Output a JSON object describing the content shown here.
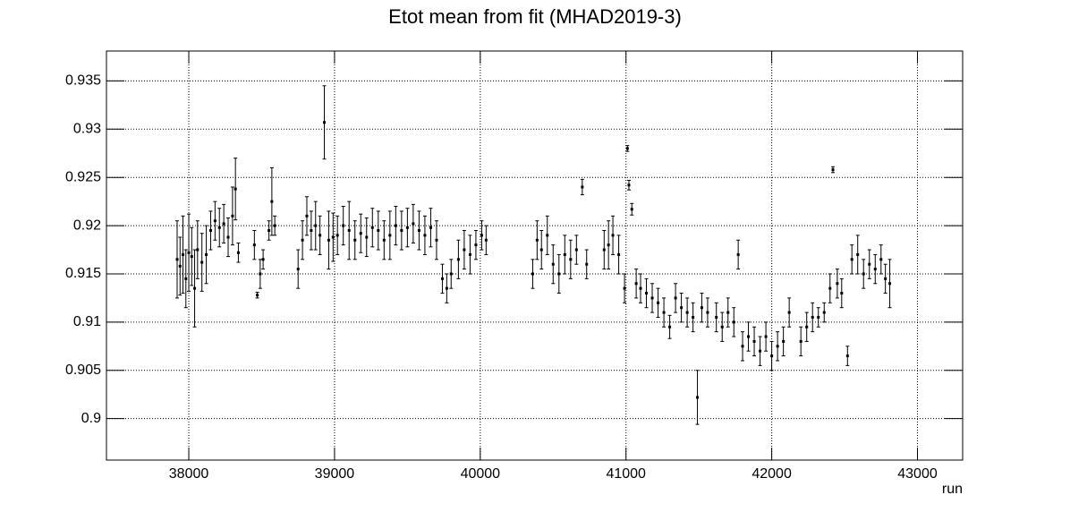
{
  "chart_data": {
    "type": "errorbar",
    "title": "Etot mean from fit (MHAD2019-3)",
    "x_label": "run",
    "color": "#000000",
    "grid": true,
    "xlim": [
      37435,
      43310
    ],
    "ylim": [
      0.8957,
      0.9381
    ],
    "xticks": [
      38000,
      39000,
      40000,
      41000,
      42000,
      43000
    ],
    "yticks": [
      0.9,
      0.905,
      0.91,
      0.915,
      0.92,
      0.925,
      0.93,
      0.935
    ],
    "x": [
      37920,
      37940,
      37960,
      37980,
      38000,
      38020,
      38040,
      38060,
      38090,
      38120,
      38150,
      38180,
      38210,
      38240,
      38270,
      38300,
      38320,
      38340,
      38450,
      38470,
      38490,
      38510,
      38550,
      38570,
      38590,
      38750,
      38780,
      38810,
      38840,
      38870,
      38900,
      38930,
      38960,
      38990,
      39020,
      39060,
      39100,
      39140,
      39180,
      39220,
      39260,
      39300,
      39340,
      39380,
      39420,
      39460,
      39500,
      39540,
      39580,
      39620,
      39660,
      39700,
      39740,
      39770,
      39800,
      39850,
      39890,
      39930,
      39970,
      40010,
      40040,
      40360,
      40390,
      40420,
      40460,
      40500,
      40540,
      40580,
      40620,
      40660,
      40700,
      40730,
      40850,
      40880,
      40910,
      40950,
      40990,
      41010,
      41020,
      41040,
      41070,
      41100,
      41140,
      41180,
      41220,
      41260,
      41300,
      41340,
      41380,
      41420,
      41460,
      41490,
      41520,
      41560,
      41620,
      41660,
      41700,
      41740,
      41770,
      41800,
      41840,
      41880,
      41920,
      41960,
      42000,
      42040,
      42080,
      42120,
      42200,
      42240,
      42280,
      42320,
      42360,
      42400,
      42420,
      42450,
      42480,
      42520,
      42550,
      42590,
      42630,
      42670,
      42710,
      42750,
      42780,
      42810
    ],
    "values": [
      0.9165,
      0.9158,
      0.917,
      0.9145,
      0.9172,
      0.9168,
      0.9135,
      0.9175,
      0.9162,
      0.917,
      0.9195,
      0.9205,
      0.9198,
      0.9202,
      0.9188,
      0.921,
      0.9238,
      0.9172,
      0.918,
      0.9128,
      0.915,
      0.9165,
      0.9195,
      0.9225,
      0.92,
      0.9155,
      0.9185,
      0.921,
      0.9195,
      0.92,
      0.919,
      0.9307,
      0.9185,
      0.9188,
      0.919,
      0.92,
      0.9195,
      0.9185,
      0.9192,
      0.9188,
      0.9198,
      0.9195,
      0.9185,
      0.919,
      0.92,
      0.9195,
      0.9198,
      0.9202,
      0.9195,
      0.919,
      0.9198,
      0.9185,
      0.9145,
      0.9135,
      0.915,
      0.9165,
      0.9175,
      0.917,
      0.918,
      0.919,
      0.9185,
      0.915,
      0.9185,
      0.9175,
      0.919,
      0.916,
      0.915,
      0.917,
      0.9165,
      0.9175,
      0.924,
      0.916,
      0.9175,
      0.918,
      0.919,
      0.917,
      0.9135,
      0.928,
      0.9242,
      0.9217,
      0.914,
      0.9135,
      0.913,
      0.9125,
      0.912,
      0.911,
      0.9095,
      0.9125,
      0.9115,
      0.911,
      0.9105,
      0.9022,
      0.9115,
      0.911,
      0.9105,
      0.9095,
      0.911,
      0.91,
      0.917,
      0.9075,
      0.9085,
      0.908,
      0.907,
      0.9085,
      0.9065,
      0.9075,
      0.908,
      0.911,
      0.908,
      0.9095,
      0.9105,
      0.9105,
      0.911,
      0.9135,
      0.9258,
      0.914,
      0.913,
      0.9065,
      0.9165,
      0.917,
      0.915,
      0.916,
      0.9155,
      0.9165,
      0.9145,
      0.914
    ],
    "errors": [
      0.004,
      0.003,
      0.004,
      0.003,
      0.004,
      0.003,
      0.004,
      0.003,
      0.003,
      0.003,
      0.002,
      0.002,
      0.002,
      0.002,
      0.002,
      0.003,
      0.0032,
      0.001,
      0.0015,
      0.0003,
      0.0015,
      0.001,
      0.001,
      0.0035,
      0.001,
      0.002,
      0.002,
      0.002,
      0.002,
      0.0025,
      0.002,
      0.0038,
      0.003,
      0.0025,
      0.002,
      0.002,
      0.003,
      0.002,
      0.002,
      0.002,
      0.002,
      0.002,
      0.002,
      0.0025,
      0.002,
      0.002,
      0.002,
      0.002,
      0.002,
      0.002,
      0.002,
      0.002,
      0.0015,
      0.0015,
      0.0015,
      0.002,
      0.002,
      0.002,
      0.0015,
      0.0015,
      0.0015,
      0.0015,
      0.002,
      0.002,
      0.002,
      0.002,
      0.002,
      0.002,
      0.002,
      0.0015,
      0.0008,
      0.0015,
      0.002,
      0.0025,
      0.002,
      0.002,
      0.0015,
      0.0003,
      0.0005,
      0.0006,
      0.0015,
      0.0015,
      0.0015,
      0.0015,
      0.0015,
      0.0015,
      0.0012,
      0.0015,
      0.0015,
      0.0015,
      0.0015,
      0.0028,
      0.0015,
      0.0015,
      0.0015,
      0.0015,
      0.0015,
      0.0015,
      0.0015,
      0.0015,
      0.0015,
      0.0015,
      0.0015,
      0.0015,
      0.0015,
      0.0015,
      0.0015,
      0.0015,
      0.0015,
      0.0015,
      0.0015,
      0.001,
      0.001,
      0.0015,
      0.0003,
      0.0015,
      0.0015,
      0.001,
      0.0015,
      0.002,
      0.0015,
      0.0015,
      0.0015,
      0.0015,
      0.0015,
      0.0025
    ]
  }
}
